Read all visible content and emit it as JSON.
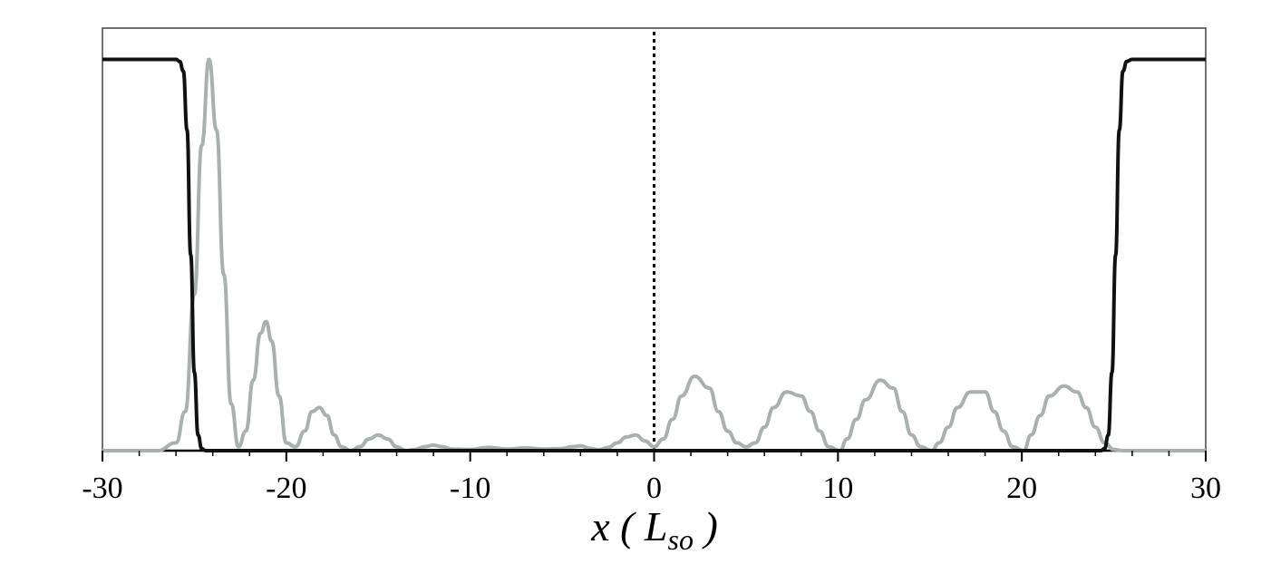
{
  "chart_data": {
    "type": "line",
    "xlim": [
      -30,
      30
    ],
    "ylim": [
      0,
      1.08
    ],
    "xticks": [
      -30,
      -20,
      -10,
      0,
      10,
      20,
      30
    ],
    "xtick_labels": [
      "-30",
      "-20",
      "-10",
      "0",
      "10",
      "20",
      "30"
    ],
    "xlabel": {
      "main": "x ( L",
      "subscript": "so",
      "close": " )"
    },
    "grid": false,
    "legend": "none",
    "series": [
      {
        "color": "#111111",
        "x": [
          -30,
          -26,
          -25.8,
          -25.6,
          -25.4,
          -25.2,
          -25.0,
          -24.8,
          -24.6,
          -24.4,
          24.3,
          24.5,
          24.7,
          24.9,
          25.1,
          25.3,
          25.5,
          25.7,
          26,
          30
        ],
        "y": [
          1,
          1,
          0.995,
          0.97,
          0.82,
          0.5,
          0.2,
          0.04,
          0.005,
          0,
          0,
          0.005,
          0.04,
          0.2,
          0.5,
          0.82,
          0.97,
          0.995,
          1,
          1
        ]
      },
      {
        "color": "#a8b1af",
        "x": [
          -30,
          -27,
          -26,
          -25.5,
          -25,
          -24.6,
          -24.2,
          -23.8,
          -23.4,
          -23,
          -22.6,
          -22.2,
          -21.8,
          -21.4,
          -21.1,
          -20.8,
          -20.4,
          -20,
          -19.5,
          -19,
          -18.6,
          -18.2,
          -17.8,
          -17.4,
          -17,
          -16.5,
          -16,
          -15.5,
          -15,
          -14.5,
          -14,
          -13.5,
          -13,
          -12.5,
          -12,
          -11.5,
          -11,
          -10,
          -9,
          -8,
          -7,
          -6,
          -5,
          -4.5,
          -4,
          -3.5,
          -3,
          -2.5,
          -2,
          -1.5,
          -1,
          -0.5,
          0,
          0.5,
          1,
          1.5,
          2.2,
          3,
          3.5,
          4,
          4.5,
          5,
          5.5,
          6,
          6.5,
          7.2,
          8,
          8.5,
          9,
          9.5,
          10.1,
          10.5,
          11,
          11.5,
          12.3,
          13,
          13.5,
          14,
          14.5,
          15.1,
          15.5,
          16,
          16.5,
          17.2,
          18,
          18.5,
          19,
          19.5,
          20.1,
          20.5,
          21,
          21.5,
          22.3,
          23,
          23.5,
          24,
          24.5,
          25,
          25.5,
          26,
          27,
          30
        ],
        "y": [
          0,
          0,
          0.02,
          0.1,
          0.4,
          0.78,
          1,
          0.82,
          0.45,
          0.12,
          0.01,
          0.05,
          0.18,
          0.3,
          0.33,
          0.28,
          0.14,
          0.02,
          0.01,
          0.05,
          0.1,
          0.11,
          0.09,
          0.04,
          0.01,
          0,
          0.01,
          0.03,
          0.04,
          0.03,
          0.01,
          0,
          0.003,
          0.01,
          0.014,
          0.01,
          0.004,
          0.003,
          0.008,
          0.004,
          0.007,
          0.004,
          0.005,
          0.01,
          0.012,
          0.006,
          0.002,
          0.008,
          0.02,
          0.035,
          0.04,
          0.025,
          0.01,
          0.03,
          0.08,
          0.14,
          0.19,
          0.16,
          0.1,
          0.05,
          0.02,
          0.01,
          0.02,
          0.06,
          0.11,
          0.15,
          0.14,
          0.1,
          0.05,
          0.01,
          0,
          0.03,
          0.08,
          0.13,
          0.18,
          0.16,
          0.1,
          0.04,
          0.01,
          0,
          0.02,
          0.06,
          0.11,
          0.15,
          0.15,
          0.1,
          0.05,
          0.01,
          0,
          0.04,
          0.09,
          0.14,
          0.165,
          0.15,
          0.11,
          0.06,
          0.02,
          0.003,
          0,
          0,
          0,
          0
        ],
        "stroke_width": 4
      }
    ],
    "annotations": [
      {
        "type": "vertical-dotted-line",
        "x": 0,
        "color": "#000000"
      }
    ]
  }
}
